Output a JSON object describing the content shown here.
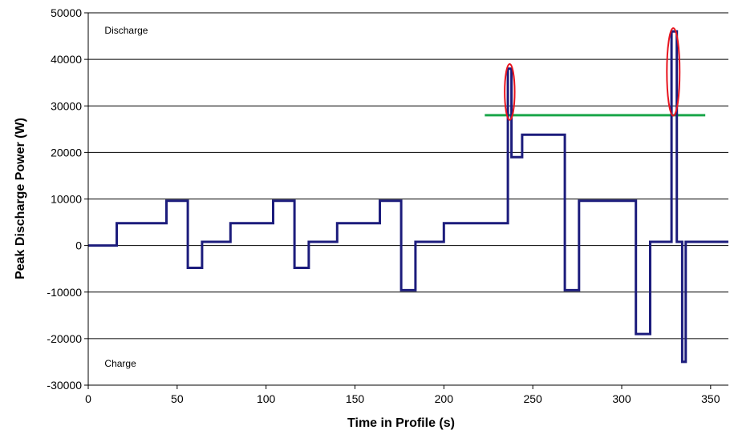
{
  "chart_data": {
    "type": "line",
    "title": "",
    "xlabel": "Time in Profile (s)",
    "ylabel": "Peak Discharge Power (W)",
    "xlim": [
      0,
      360
    ],
    "ylim": [
      -30000,
      50000
    ],
    "xticks": [
      "0",
      "50",
      "100",
      "150",
      "200",
      "250",
      "300",
      "350"
    ],
    "yticks": [
      "-30000",
      "-20000",
      "-10000",
      "0",
      "10000",
      "20000",
      "30000",
      "40000",
      "50000"
    ],
    "grid": "horizontal",
    "legend": "none",
    "annotations": [
      {
        "text": "Discharge",
        "x": 2,
        "y": 45500
      },
      {
        "text": "Charge",
        "x": 2,
        "y": -26000
      }
    ],
    "reference_line": {
      "y": 28000,
      "x_start": 223,
      "x_end": 347,
      "color": "#1aa64a"
    },
    "highlight_ellipses": [
      {
        "cx": 237,
        "cy": 33000,
        "rx": 2.8,
        "ry": 6000,
        "color": "#e8141e"
      },
      {
        "cx": 329,
        "cy": 37300,
        "rx": 3.6,
        "ry": 9400,
        "color": "#e8141e"
      }
    ],
    "series": [
      {
        "color": "#1c1c7c",
        "x": [
          0,
          16,
          16,
          44,
          44,
          56,
          56,
          64,
          64,
          80,
          80,
          104,
          104,
          116,
          116,
          124,
          124,
          140,
          140,
          164,
          164,
          176,
          176,
          184,
          184,
          200,
          200,
          236,
          236,
          238,
          238,
          244,
          244,
          268,
          268,
          276,
          276,
          308,
          308,
          316,
          316,
          328,
          328,
          331,
          331,
          334,
          334,
          336,
          336,
          360
        ],
        "y": [
          0,
          0,
          4800,
          4800,
          9600,
          9600,
          -4800,
          -4800,
          800,
          800,
          4800,
          4800,
          9600,
          9600,
          -4800,
          -4800,
          800,
          800,
          4800,
          4800,
          9600,
          9600,
          -9600,
          -9600,
          800,
          800,
          4800,
          4800,
          38000,
          38000,
          19000,
          19000,
          23800,
          23800,
          -9600,
          -9600,
          9600,
          9600,
          -19000,
          -19000,
          800,
          800,
          46000,
          46000,
          800,
          800,
          -25000,
          -25000,
          800,
          800
        ]
      }
    ]
  }
}
